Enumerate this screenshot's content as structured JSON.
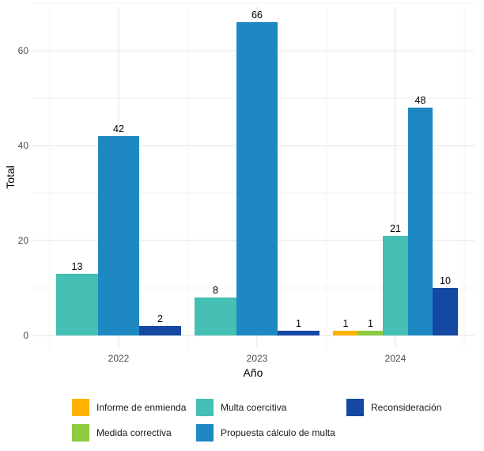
{
  "chart_data": {
    "type": "bar",
    "title": "",
    "xlabel": "Año",
    "ylabel": "Total",
    "categories": [
      "2022",
      "2023",
      "2024"
    ],
    "ylim": [
      0,
      70
    ],
    "yticks": [
      0,
      20,
      40,
      60
    ],
    "grid": true,
    "legend_position": "bottom",
    "series": [
      {
        "name": "Informe de enmienda",
        "color": "#FFB300",
        "values": [
          null,
          null,
          1
        ]
      },
      {
        "name": "Medida correctiva",
        "color": "#8CCB3F",
        "values": [
          null,
          null,
          1
        ]
      },
      {
        "name": "Multa coercitiva",
        "color": "#45BFB3",
        "values": [
          13,
          8,
          21
        ]
      },
      {
        "name": "Propuesta cálculo de multa",
        "color": "#1E88C3",
        "values": [
          42,
          66,
          48
        ]
      },
      {
        "name": "Reconsideración",
        "color": "#1448A3",
        "values": [
          2,
          1,
          10
        ]
      }
    ]
  }
}
